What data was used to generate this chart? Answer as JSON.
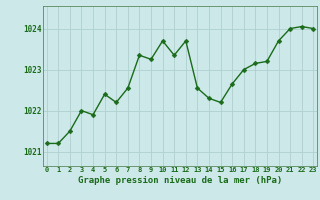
{
  "x": [
    0,
    1,
    2,
    3,
    4,
    5,
    6,
    7,
    8,
    9,
    10,
    11,
    12,
    13,
    14,
    15,
    16,
    17,
    18,
    19,
    20,
    21,
    22,
    23
  ],
  "y": [
    1021.2,
    1021.2,
    1021.5,
    1022.0,
    1021.9,
    1022.4,
    1022.2,
    1022.55,
    1023.35,
    1023.25,
    1023.7,
    1023.35,
    1023.7,
    1022.55,
    1022.3,
    1022.2,
    1022.65,
    1023.0,
    1023.15,
    1023.2,
    1023.7,
    1024.0,
    1024.05,
    1024.0
  ],
  "line_color": "#1a6b1a",
  "marker": "D",
  "markersize": 2.5,
  "linewidth": 1.0,
  "bg_color": "#cce8e8",
  "grid_color": "#aacccc",
  "axis_bg": "#cce8e8",
  "xlabel": "Graphe pression niveau de la mer (hPa)",
  "xlabel_fontsize": 6.5,
  "xlabel_color": "#1a6b1a",
  "ytick_labels": [
    "1021",
    "1022",
    "1023",
    "1024"
  ],
  "ytick_values": [
    1021,
    1022,
    1023,
    1024
  ],
  "ylim": [
    1020.65,
    1024.55
  ],
  "xlim": [
    -0.3,
    23.3
  ],
  "xtick_fontsize": 5.0,
  "ytick_fontsize": 5.5,
  "tick_color": "#1a6b1a",
  "spine_color": "#5a8a5a"
}
